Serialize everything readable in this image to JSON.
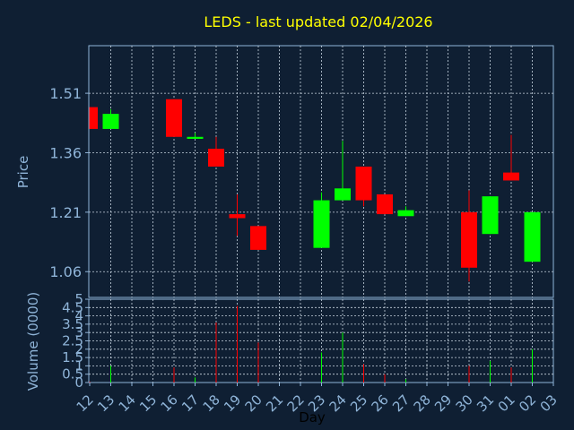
{
  "chart_data": {
    "type": "candlestick",
    "title": "LEDS - last updated 02/04/2026",
    "price_ylabel": "Price",
    "volume_ylabel": "Volume (0000)",
    "xlabel": "Day",
    "x_ticks": [
      "12",
      "13",
      "14",
      "15",
      "16",
      "17",
      "18",
      "19",
      "20",
      "21",
      "22",
      "23",
      "24",
      "25",
      "26",
      "27",
      "28",
      "29",
      "30",
      "31",
      "01",
      "02",
      "03"
    ],
    "price_yticks": [
      "1.06",
      "1.21",
      "1.36",
      "1.51"
    ],
    "price_ylim": [
      0.995,
      1.63
    ],
    "volume_yticks": [
      "0",
      "0.5",
      "1",
      "1.5",
      "2",
      "2.5",
      "3",
      "3.5",
      "4",
      "4.5",
      "5"
    ],
    "volume_ylim": [
      0,
      5
    ],
    "up_color": "#00ff00",
    "down_color": "#ff0000",
    "grid": true,
    "candles": [
      {
        "day": "12",
        "open": 1.475,
        "high": 1.475,
        "low": 1.42,
        "close": 1.42,
        "volume": 0.05
      },
      {
        "day": "13",
        "open": 1.42,
        "high": 1.47,
        "low": 1.42,
        "close": 1.458,
        "volume": 1.0
      },
      {
        "day": "16",
        "open": 1.495,
        "high": 1.495,
        "low": 1.4,
        "close": 1.4,
        "volume": 0.9
      },
      {
        "day": "17",
        "open": 1.395,
        "high": 1.41,
        "low": 1.395,
        "close": 1.4,
        "volume": 0.3
      },
      {
        "day": "18",
        "open": 1.37,
        "high": 1.4,
        "low": 1.325,
        "close": 1.325,
        "volume": 3.6
      },
      {
        "day": "19",
        "open": 1.205,
        "high": 1.255,
        "low": 1.15,
        "close": 1.195,
        "volume": 4.6
      },
      {
        "day": "20",
        "open": 1.175,
        "high": 1.175,
        "low": 1.115,
        "close": 1.115,
        "volume": 2.4
      },
      {
        "day": "23",
        "open": 1.12,
        "high": 1.26,
        "low": 1.12,
        "close": 1.24,
        "volume": 1.8
      },
      {
        "day": "24",
        "open": 1.24,
        "high": 1.39,
        "low": 1.24,
        "close": 1.27,
        "volume": 3.0
      },
      {
        "day": "25",
        "open": 1.325,
        "high": 1.325,
        "low": 1.225,
        "close": 1.24,
        "volume": 1.1
      },
      {
        "day": "26",
        "open": 1.255,
        "high": 1.255,
        "low": 1.205,
        "close": 1.205,
        "volume": 0.5
      },
      {
        "day": "27",
        "open": 1.2,
        "high": 1.225,
        "low": 1.2,
        "close": 1.215,
        "volume": 0.2
      },
      {
        "day": "30",
        "open": 1.21,
        "high": 1.265,
        "low": 1.035,
        "close": 1.07,
        "volume": 1.0
      },
      {
        "day": "31",
        "open": 1.155,
        "high": 1.25,
        "low": 1.155,
        "close": 1.25,
        "volume": 1.3
      },
      {
        "day": "01",
        "open": 1.31,
        "high": 1.405,
        "low": 1.29,
        "close": 1.29,
        "volume": 0.9
      },
      {
        "day": "02",
        "open": 1.085,
        "high": 1.21,
        "low": 1.085,
        "close": 1.21,
        "volume": 2.0
      }
    ]
  }
}
